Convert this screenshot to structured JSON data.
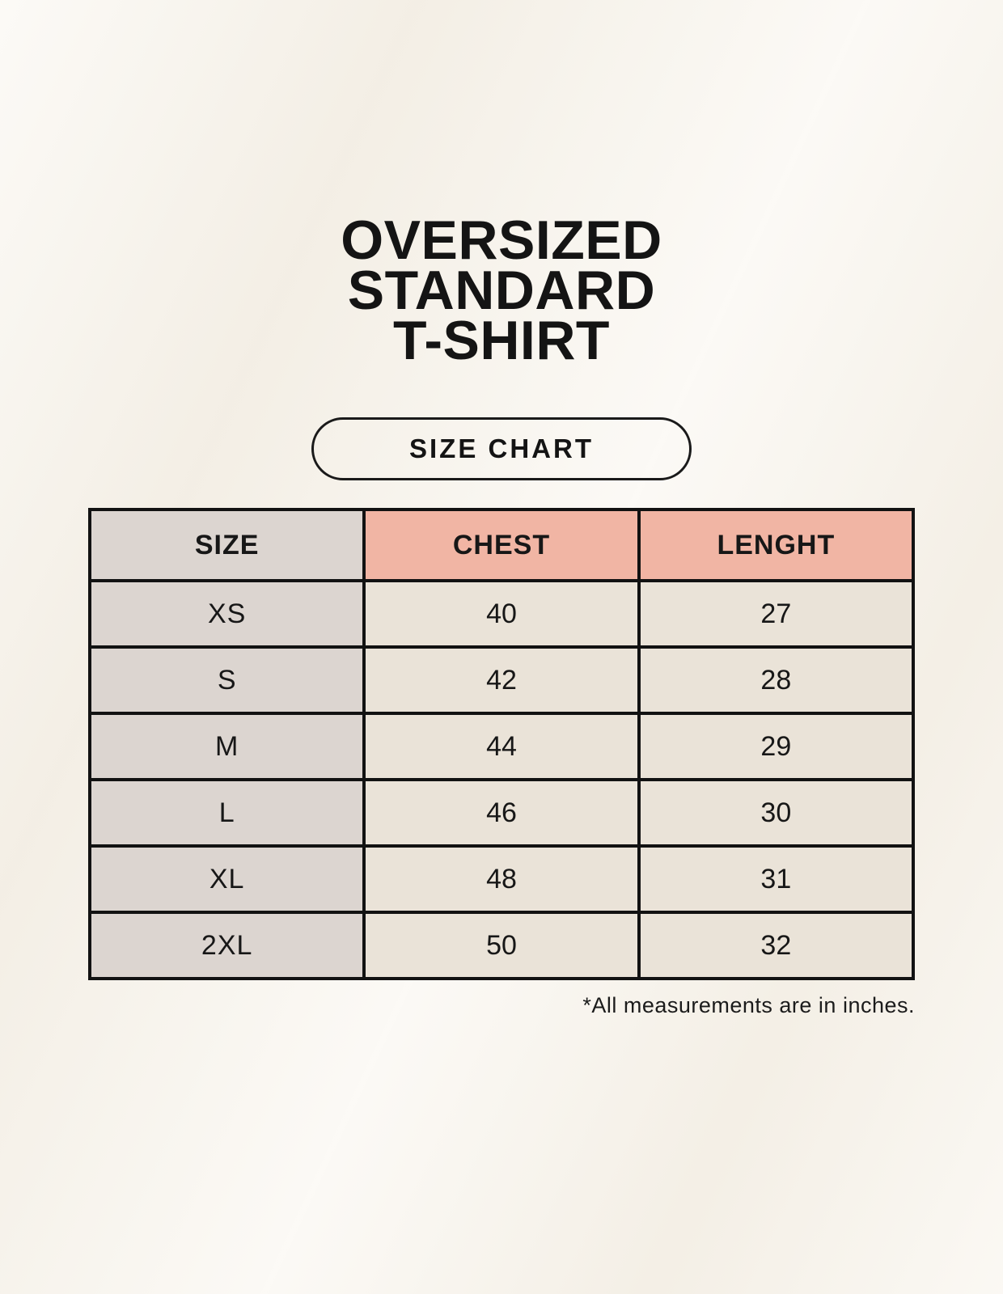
{
  "page": {
    "title_lines": [
      "OVERSIZED",
      "STANDARD",
      "T-SHIRT"
    ],
    "size_chart_label": "SIZE CHART",
    "footnote": "*All measurements are in inches."
  },
  "chart_data": {
    "type": "table",
    "title": "OVERSIZED STANDARD T-SHIRT",
    "subtitle": "SIZE CHART",
    "columns": [
      "SIZE",
      "CHEST",
      "LENGHT"
    ],
    "rows": [
      {
        "size": "XS",
        "chest": 40,
        "length": 27
      },
      {
        "size": "S",
        "chest": 42,
        "length": 28
      },
      {
        "size": "M",
        "chest": 44,
        "length": 29
      },
      {
        "size": "L",
        "chest": 46,
        "length": 30
      },
      {
        "size": "XL",
        "chest": 48,
        "length": 31
      },
      {
        "size": "2XL",
        "chest": 50,
        "length": 32
      }
    ],
    "units_note": "*All measurements are in inches.",
    "layout": {
      "grid": true,
      "header_position": "top"
    }
  },
  "colors": {
    "background": "#f8f4ec",
    "label_column_bg": "#dcd5d0",
    "measure_header_bg": "#f1b5a4",
    "data_cell_bg": "#eae3d8",
    "table_border": "#121212",
    "text": "#171717"
  }
}
